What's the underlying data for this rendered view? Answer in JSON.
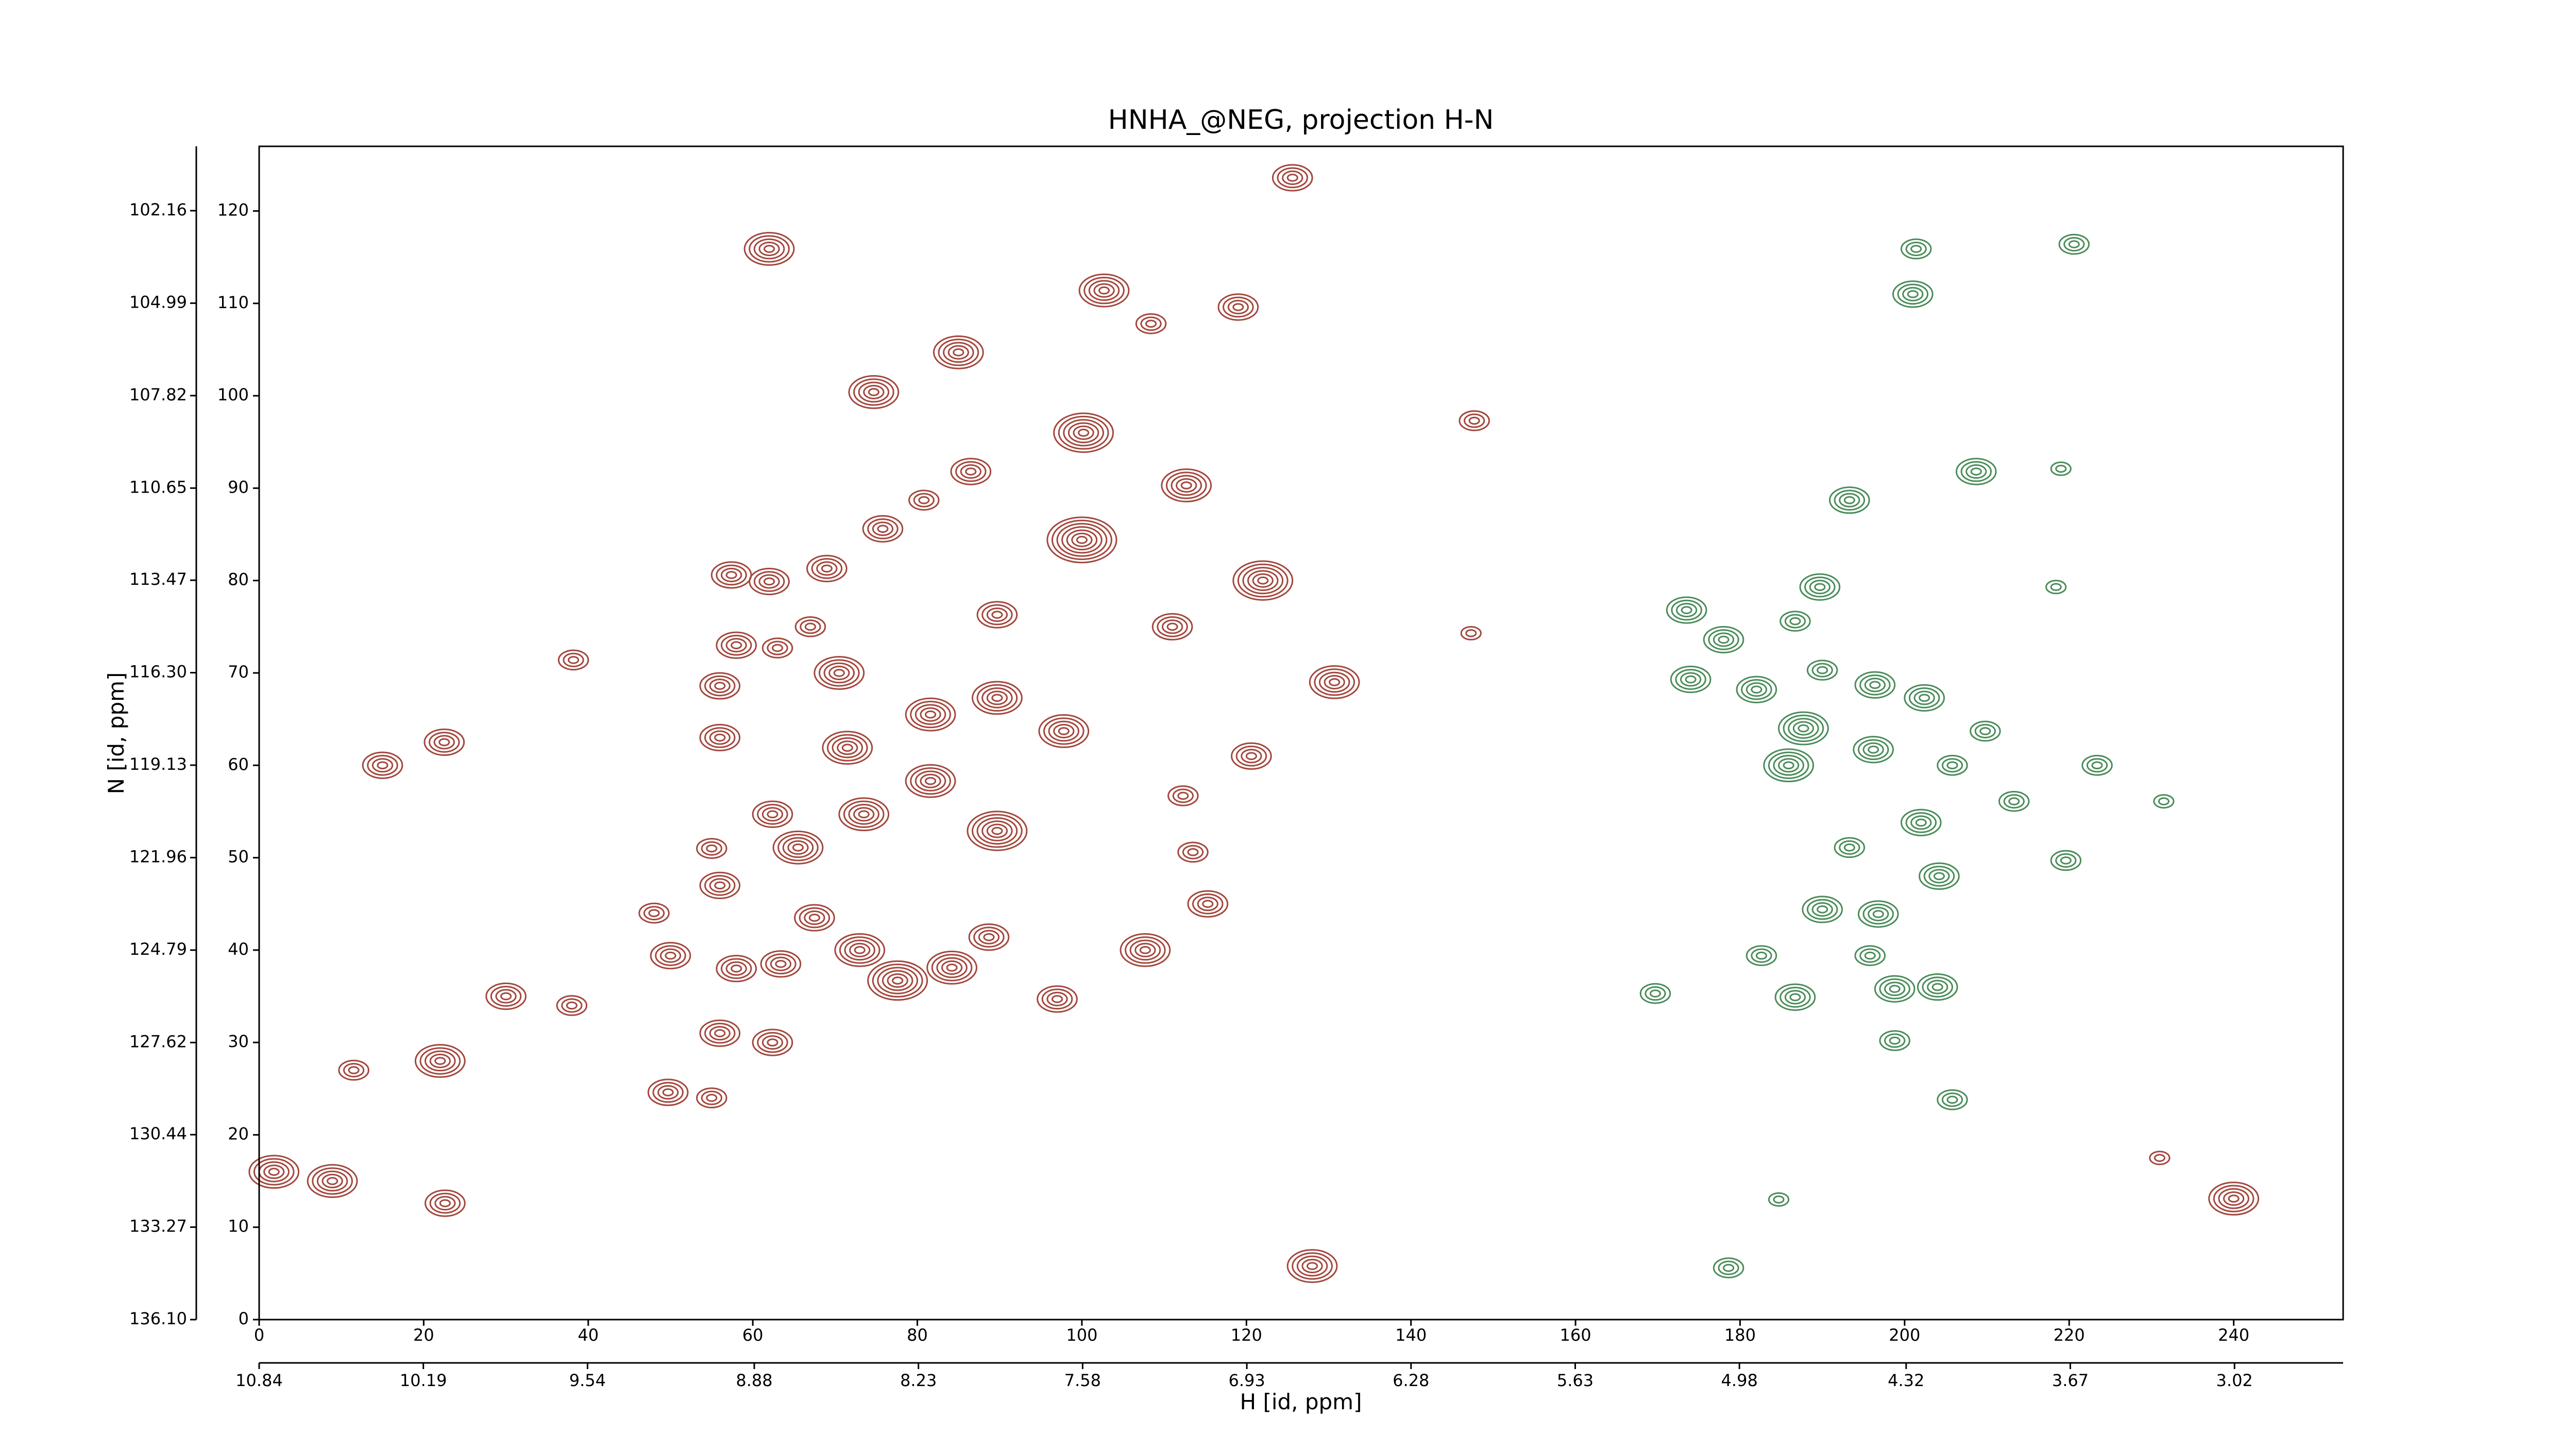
{
  "chart_data": {
    "type": "contour",
    "title": "HNHA_@NEG, projection H-N",
    "xlabel": "H [id, ppm]",
    "ylabel": "N [id, ppm]",
    "xlim": [
      0,
      253.3
    ],
    "ylim": [
      0,
      127
    ],
    "xticks": [
      0,
      20,
      40,
      60,
      80,
      100,
      120,
      140,
      160,
      180,
      200,
      220,
      240
    ],
    "yticks": [
      0,
      10,
      20,
      30,
      40,
      50,
      60,
      70,
      80,
      90,
      100,
      110,
      120
    ],
    "x2lim": [
      10.84,
      2.59
    ],
    "x2ticks": [
      10.84,
      10.19,
      9.54,
      8.88,
      8.23,
      7.58,
      6.93,
      6.28,
      5.63,
      4.98,
      4.32,
      3.67,
      3.02
    ],
    "y2lim": [
      136.1,
      100.19
    ],
    "y2ticks": [
      {
        "value": 136.1,
        "label": "136.10"
      },
      133.27,
      130.44,
      127.62,
      124.79,
      121.96,
      119.13,
      {
        "value": 116.3,
        "label": "116.30"
      },
      113.47,
      110.65,
      107.82,
      104.99,
      102.16
    ],
    "series": [
      {
        "color": "#a3473d",
        "x": [
          1.8,
          8.9,
          22,
          11.5,
          30,
          38,
          22.6,
          15,
          22.5,
          38.2,
          49.7,
          55,
          50,
          58,
          56,
          62.4,
          48,
          56,
          55,
          56,
          56,
          58,
          63,
          57.4,
          62,
          62,
          69,
          67,
          75.8,
          80.8,
          86.5,
          74.7,
          85,
          102.7,
          108.4,
          119,
          125.6,
          147.7,
          147.3,
          111,
          112.7,
          100,
          100.2,
          122,
          120.6,
          130.7,
          112.3,
          113.5,
          115.3,
          107.7,
          97,
          84.2,
          73,
          88.7,
          67.5,
          63.4,
          77.6,
          89.7,
          81.6,
          73.5,
          65.5,
          62.4,
          71.5,
          89.7,
          97.8,
          81.6,
          89.7,
          70.5,
          128,
          240,
          231
        ],
        "y": [
          16,
          15,
          28,
          27,
          35,
          34,
          12.6,
          60,
          62.5,
          71.4,
          24.6,
          24,
          39.4,
          38,
          31,
          30,
          44,
          47,
          51,
          68.6,
          63,
          73,
          72.7,
          80.6,
          79.9,
          115.9,
          81.3,
          75,
          85.6,
          88.7,
          91.8,
          100.4,
          104.7,
          111.4,
          107.8,
          109.6,
          123.6,
          97.3,
          74.3,
          75,
          90.3,
          84.4,
          96,
          80,
          61,
          69,
          56.7,
          50.6,
          45,
          40,
          34.7,
          38.1,
          40,
          41.4,
          43.5,
          38.5,
          36.7,
          52.9,
          58.3,
          54.7,
          51.1,
          54.7,
          61.9,
          67.3,
          63.7,
          65.5,
          76.3,
          70,
          5.8,
          13.1,
          17.5
        ],
        "levels": [
          5,
          5,
          5,
          3,
          4,
          3,
          4,
          4,
          4,
          3,
          4,
          3,
          4,
          4,
          4,
          4,
          3,
          4,
          3,
          4,
          4,
          4,
          3,
          4,
          4,
          5,
          4,
          3,
          4,
          3,
          4,
          5,
          5,
          5,
          3,
          4,
          4,
          3,
          2,
          4,
          5,
          7,
          6,
          6,
          4,
          5,
          3,
          3,
          4,
          5,
          4,
          5,
          5,
          4,
          4,
          4,
          6,
          6,
          5,
          5,
          5,
          4,
          5,
          5,
          5,
          5,
          4,
          5,
          5,
          5,
          2
        ]
      },
      {
        "color": "#4a8c5a",
        "x": [
          173.5,
          178,
          174,
          182,
          189.7,
          186.7,
          193.3,
          208.7,
          201,
          201.4,
          187.7,
          185.9,
          196.2,
          196.4,
          202.4,
          190,
          196.8,
          186.7,
          198.8,
          195.8,
          204,
          182.6,
          169.7,
          178.6,
          205.8,
          198.8,
          204.2,
          213.3,
          202,
          205.8,
          209.8,
          219.6,
          193.3,
          190,
          218.4,
          231.5,
          223.4,
          184.7,
          220.6,
          219
        ],
        "y": [
          76.8,
          73.6,
          69.3,
          68.2,
          79.3,
          75.6,
          88.7,
          91.8,
          111,
          115.9,
          64,
          60,
          61.7,
          68.7,
          67.3,
          44.4,
          43.9,
          34.9,
          35.8,
          39.4,
          36,
          39.4,
          35.3,
          5.6,
          23.8,
          30.2,
          48,
          56.1,
          53.8,
          60,
          63.7,
          49.7,
          51.1,
          70.3,
          79.3,
          56.1,
          60,
          13,
          116.4,
          92.1
        ],
        "levels": [
          4,
          4,
          4,
          4,
          4,
          3,
          4,
          4,
          4,
          3,
          5,
          5,
          4,
          4,
          4,
          4,
          4,
          4,
          4,
          3,
          4,
          3,
          3,
          3,
          3,
          3,
          4,
          3,
          4,
          3,
          3,
          3,
          3,
          3,
          2,
          2,
          3,
          2,
          3,
          2
        ]
      }
    ]
  }
}
